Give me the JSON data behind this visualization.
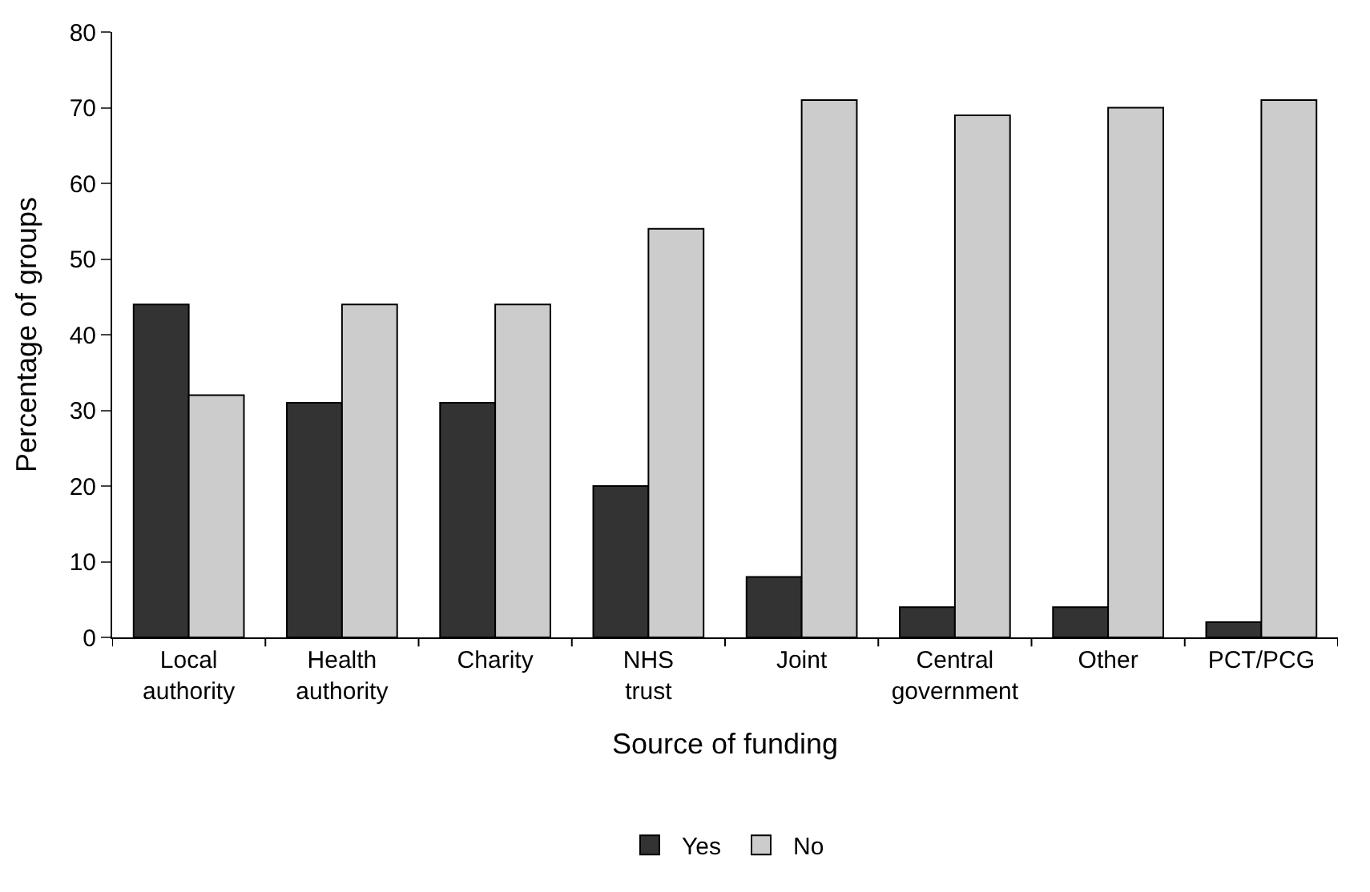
{
  "chart_data": {
    "type": "bar",
    "xlabel": "Source of funding",
    "ylabel": "Percentage of groups",
    "categories": [
      "Local\nauthority",
      "Health\nauthority",
      "Charity",
      "NHS\ntrust",
      "Joint",
      "Central\ngovernment",
      "Other",
      "PCT/PCG"
    ],
    "series": [
      {
        "name": "Yes",
        "color": "#333333",
        "values": [
          44,
          31,
          31,
          20,
          8,
          4,
          4,
          2
        ]
      },
      {
        "name": "No",
        "color": "#cccccc",
        "values": [
          32,
          44,
          44,
          54,
          71,
          69,
          70,
          71
        ]
      }
    ],
    "ylim": [
      0,
      80
    ],
    "yticks": [
      0,
      10,
      20,
      30,
      40,
      50,
      60,
      70,
      80
    ],
    "legend": "bottom"
  }
}
